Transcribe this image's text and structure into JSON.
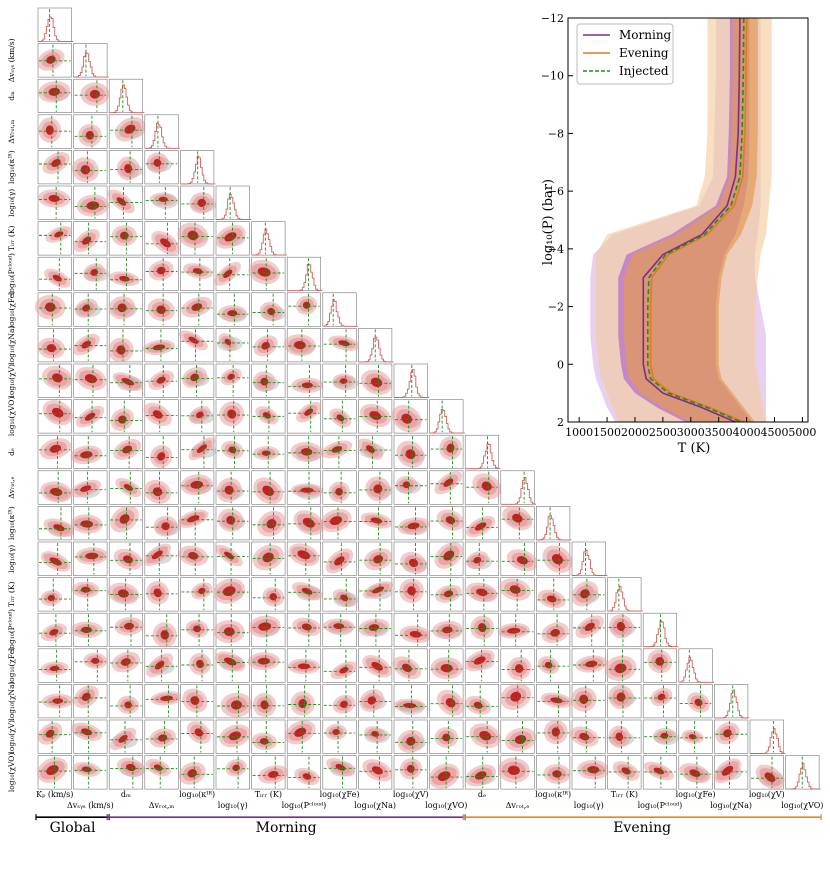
{
  "corner": {
    "parameters": [
      {
        "symbol": "K_p",
        "x_label": "Kₚ (km/s)",
        "y_label": "",
        "group": "global"
      },
      {
        "symbol": "dv_sys",
        "x_label": "Δvₛᵧₛ (km/s)",
        "y_label": "Δvₛᵧₛ (km/s)",
        "group": "global"
      },
      {
        "symbol": "d_m",
        "x_label": "dₘ",
        "y_label": "dₘ",
        "group": "morning"
      },
      {
        "symbol": "dv_rot_m",
        "x_label": "Δvᵣₒₜ,ₘ",
        "y_label": "Δvᵣₒₜ,ₘ",
        "group": "morning"
      },
      {
        "symbol": "log_kIR_m",
        "x_label": "log₁₀(κᴵᴿ)",
        "y_label": "log₁₀(κᴵᴿ)",
        "group": "morning"
      },
      {
        "symbol": "log_gamma_m",
        "x_label": "log₁₀(γ)",
        "y_label": "log₁₀(γ)",
        "group": "morning"
      },
      {
        "symbol": "T_irr_m",
        "x_label": "Tᵢᵣᵣ (K)",
        "y_label": "Tᵢᵣᵣ (K)",
        "group": "morning"
      },
      {
        "symbol": "log_Pcloud_m",
        "x_label": "log₁₀(Pᶜˡᵒᵘᵈ)",
        "y_label": "log₁₀(Pᶜˡᵒᵘᵈ)",
        "group": "morning"
      },
      {
        "symbol": "log_chiFe_m",
        "x_label": "log₁₀(χFe)",
        "y_label": "log₁₀(χFe)",
        "group": "morning"
      },
      {
        "symbol": "log_chiNa_m",
        "x_label": "log₁₀(χNa)",
        "y_label": "log₁₀(χNa)",
        "group": "morning"
      },
      {
        "symbol": "log_chiV_m",
        "x_label": "log₁₀(χV)",
        "y_label": "log₁₀(χV)",
        "group": "morning"
      },
      {
        "symbol": "log_chiVO_m",
        "x_label": "log₁₀(χVO)",
        "y_label": "log₁₀(χVO)",
        "group": "morning"
      },
      {
        "symbol": "d_e",
        "x_label": "dₑ",
        "y_label": "dₑ",
        "group": "evening"
      },
      {
        "symbol": "dv_rot_e",
        "x_label": "Δvᵣₒₜ,ₑ",
        "y_label": "Δvᵣₒₜ,ₑ",
        "group": "evening"
      },
      {
        "symbol": "log_kIR_e",
        "x_label": "log₁₀(κᴵᴿ)",
        "y_label": "log₁₀(κᴵᴿ)",
        "group": "evening"
      },
      {
        "symbol": "log_gamma_e",
        "x_label": "log₁₀(γ)",
        "y_label": "log₁₀(γ)",
        "group": "evening"
      },
      {
        "symbol": "T_irr_e",
        "x_label": "Tᵢᵣᵣ (K)",
        "y_label": "Tᵢᵣᵣ (K)",
        "group": "evening"
      },
      {
        "symbol": "log_Pcloud_e",
        "x_label": "log₁₀(Pᶜˡᵒᵘᵈ)",
        "y_label": "log₁₀(Pᶜˡᵒᵘᵈ)",
        "group": "evening"
      },
      {
        "symbol": "log_chiFe_e",
        "x_label": "log₁₀(χFe)",
        "y_label": "log₁₀(χFe)",
        "group": "evening"
      },
      {
        "symbol": "log_chiNa_e",
        "x_label": "log₁₀(χNa)",
        "y_label": "log₁₀(χNa)",
        "group": "evening"
      },
      {
        "symbol": "log_chiV_e",
        "x_label": "log₁₀(χV)",
        "y_label": "log₁₀(χV)",
        "group": "evening"
      },
      {
        "symbol": "log_chiVO_e",
        "x_label": "log₁₀(χVO)",
        "y_label": "log₁₀(χVO)",
        "group": "evening"
      }
    ],
    "groups": [
      {
        "name": "Global",
        "color": "#000000",
        "first": 0,
        "last": 1
      },
      {
        "name": "Morning",
        "color": "#7b2d8e",
        "first": 2,
        "last": 11
      },
      {
        "name": "Evening",
        "color": "#e08a1e",
        "first": 12,
        "last": 21
      }
    ],
    "colors": {
      "contour_fill": "#e8a0a0",
      "contour_inner": "#c02020",
      "hist": "#d06060",
      "injected": "#1a8f1a",
      "prior_gray": "#bdbdbd"
    }
  },
  "chart_data": {
    "type": "line",
    "xlabel": "T (K)",
    "ylabel": "log₁₀(P) (bar)",
    "xlim": [
      800,
      5100
    ],
    "ylim": [
      2,
      -12
    ],
    "x_ticks": [
      1000,
      1500,
      2000,
      2500,
      3000,
      3500,
      4000,
      4500,
      5000
    ],
    "y_ticks": [
      2,
      0,
      -2,
      -4,
      -6,
      -8,
      -10,
      -12
    ],
    "legend_position": "top-left",
    "series": [
      {
        "name": "Morning",
        "color": "#7b2d8e",
        "x": [
          3880,
          3870,
          3850,
          3800,
          3650,
          3200,
          2500,
          2150,
          2150,
          2150,
          2150,
          2200,
          2500,
          3200,
          3800
        ],
        "y": [
          -12,
          -10,
          -8,
          -6.5,
          -5.5,
          -4.5,
          -3.8,
          -3.0,
          -2.0,
          -1.0,
          0.0,
          0.5,
          1.0,
          1.5,
          2.0
        ],
        "band_outer": {
          "low": [
            3450,
            3450,
            3420,
            3400,
            3150,
            1600,
            1250,
            1200,
            1200,
            1200,
            1250,
            1300,
            1400,
            1500,
            1650
          ],
          "high": [
            4250,
            4250,
            4250,
            4250,
            4250,
            4200,
            4150,
            4150,
            4250,
            4350,
            4350,
            4350,
            4350,
            4350,
            4350
          ]
        },
        "band_inner": {
          "low": [
            3700,
            3700,
            3680,
            3650,
            3450,
            2650,
            1850,
            1700,
            1700,
            1700,
            1750,
            1800,
            2000,
            2400,
            2900
          ],
          "high": [
            4050,
            4050,
            4050,
            4030,
            3950,
            3800,
            3600,
            3500,
            3450,
            3450,
            3450,
            3500,
            3700,
            3900,
            4100
          ]
        }
      },
      {
        "name": "Evening",
        "color": "#e07b1a",
        "x": [
          4000,
          3990,
          3970,
          3930,
          3780,
          3300,
          2600,
          2300,
          2280,
          2280,
          2280,
          2330,
          2650,
          3350,
          3950
        ],
        "y": [
          -12,
          -10,
          -8,
          -6.5,
          -5.5,
          -4.5,
          -3.8,
          -3.0,
          -2.0,
          -1.0,
          0.0,
          0.5,
          1.0,
          1.5,
          2.0
        ],
        "band_outer": {
          "low": [
            3300,
            3300,
            3300,
            3250,
            3100,
            1500,
            1300,
            1300,
            1300,
            1300,
            1350,
            1400,
            1500,
            1600,
            1700
          ],
          "high": [
            4450,
            4450,
            4450,
            4450,
            4400,
            4350,
            4250,
            4200,
            4150,
            4150,
            4150,
            4200,
            4250,
            4300,
            4350
          ]
        },
        "band_inner": {
          "low": [
            3750,
            3750,
            3730,
            3700,
            3500,
            2750,
            1950,
            1800,
            1800,
            1800,
            1850,
            1900,
            2100,
            2500,
            3000
          ],
          "high": [
            4200,
            4200,
            4200,
            4180,
            4100,
            3900,
            3650,
            3550,
            3500,
            3500,
            3500,
            3550,
            3750,
            3950,
            4150
          ]
        }
      },
      {
        "name": "Injected",
        "color": "#1a8f1a",
        "dashed": true,
        "x": [
          3950,
          3940,
          3920,
          3880,
          3720,
          3250,
          2550,
          2250,
          2230,
          2230,
          2230,
          2280,
          2600,
          3300,
          3900
        ],
        "y": [
          -12,
          -10,
          -8,
          -6.5,
          -5.5,
          -4.5,
          -3.8,
          -3.0,
          -2.0,
          -1.0,
          0.0,
          0.5,
          1.0,
          1.5,
          2.0
        ]
      }
    ]
  }
}
